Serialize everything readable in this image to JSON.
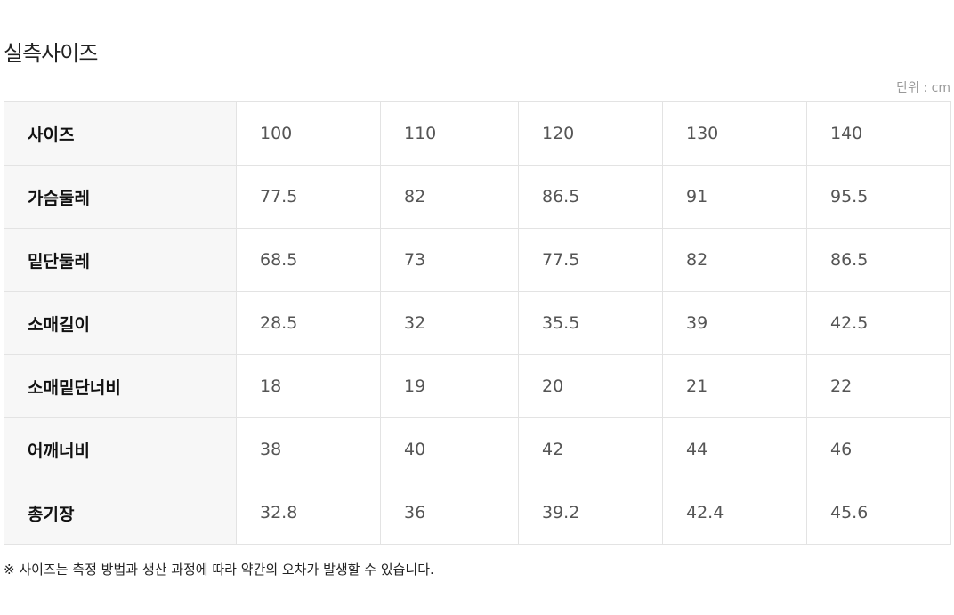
{
  "title": "실측사이즈",
  "unit": "단위 : cm",
  "rows": [
    {
      "label": "사이즈",
      "values": [
        "100",
        "110",
        "120",
        "130",
        "140"
      ]
    },
    {
      "label": "가슴둘레",
      "values": [
        "77.5",
        "82",
        "86.5",
        "91",
        "95.5"
      ]
    },
    {
      "label": "밑단둘레",
      "values": [
        "68.5",
        "73",
        "77.5",
        "82",
        "86.5"
      ]
    },
    {
      "label": "소매길이",
      "values": [
        "28.5",
        "32",
        "35.5",
        "39",
        "42.5"
      ]
    },
    {
      "label": "소매밑단너비",
      "values": [
        "18",
        "19",
        "20",
        "21",
        "22"
      ]
    },
    {
      "label": "어깨너비",
      "values": [
        "38",
        "40",
        "42",
        "44",
        "46"
      ]
    },
    {
      "label": "총기장",
      "values": [
        "32.8",
        "36",
        "39.2",
        "42.4",
        "45.6"
      ]
    }
  ],
  "note": "※ 사이즈는 측정 방법과 생산 과정에 따라 약간의 오차가 발생할 수 있습니다."
}
